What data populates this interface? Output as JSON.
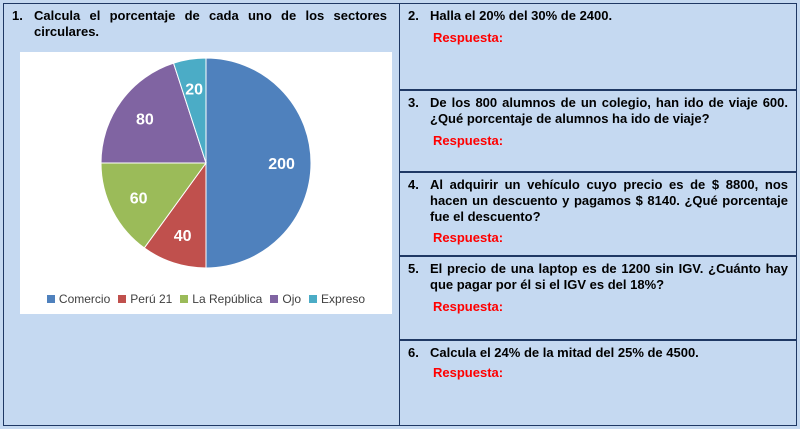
{
  "q1": {
    "num": "1.",
    "text": "Calcula el porcentaje de cada uno de los sectores circulares."
  },
  "q2": {
    "num": "2.",
    "text": "Halla el 20% del 30% de 2400.",
    "answer": "Respuesta:"
  },
  "q3": {
    "num": "3.",
    "text": "De los 800 alumnos de un colegio, han ido de viaje 600. ¿Qué porcentaje de alumnos ha ido de viaje?",
    "answer": "Respuesta:"
  },
  "q4": {
    "num": "4.",
    "text": "Al adquirir un vehículo cuyo precio es de $ 8800, nos hacen un descuento y pagamos $ 8140. ¿Qué porcentaje fue el descuento?",
    "answer": "Respuesta:"
  },
  "q5": {
    "num": "5.",
    "text": "El precio de una laptop es de 1200 sin IGV. ¿Cuánto hay que pagar por él si el IGV es del 18%?",
    "answer": "Respuesta:"
  },
  "q6": {
    "num": "6.",
    "text": "Calcula el 24% de la mitad del 25% de 4500.",
    "answer": "Respuesta:"
  },
  "chart_data": {
    "type": "pie",
    "categories": [
      "Comercio",
      "Perú 21",
      "La República",
      "Ojo",
      "Expreso"
    ],
    "values": [
      200,
      40,
      60,
      80,
      20
    ],
    "colors": [
      "#4f81bd",
      "#c0504d",
      "#9bbb59",
      "#8064a2",
      "#4bacc6"
    ],
    "data_label_color": "#ffffff",
    "legend_position": "bottom",
    "start": "top-clockwise"
  }
}
